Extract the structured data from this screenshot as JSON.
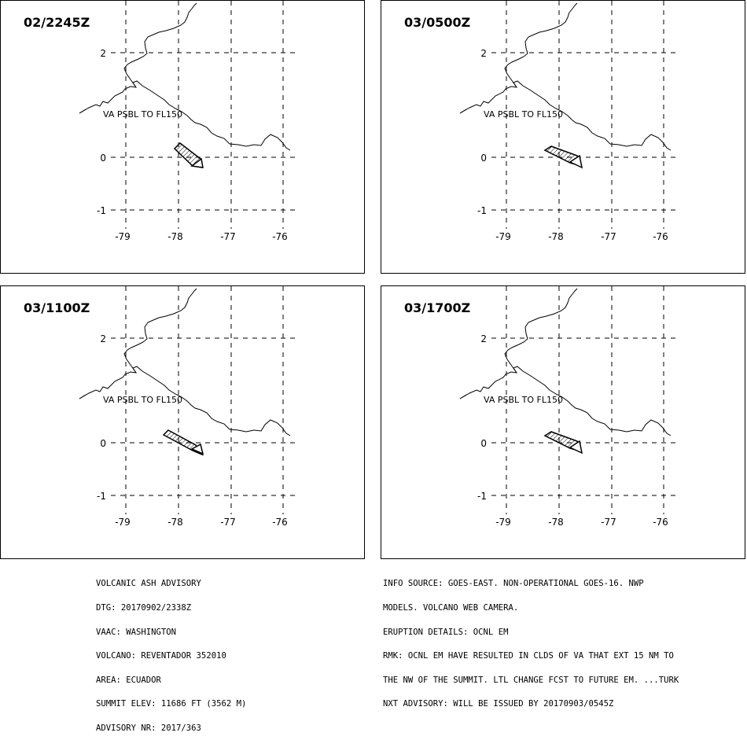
{
  "panels": [
    {
      "time": "02/2245Z",
      "label": "VA PSBL TO FL150",
      "cloud": "p1"
    },
    {
      "time": "03/0500Z",
      "label": "VA PSBL TO FL150",
      "cloud": "p2"
    },
    {
      "time": "03/1100Z",
      "label": "VA PSBL TO FL150",
      "cloud": "p3"
    },
    {
      "time": "03/1700Z",
      "label": "VA PSBL TO FL150",
      "cloud": "p2"
    }
  ],
  "axes": {
    "lon_ticks": [
      "-79",
      "-78",
      "-77",
      "-76"
    ],
    "lat_ticks": [
      "2",
      "0",
      "-1"
    ]
  },
  "advisory_left": [
    "VOLCANIC ASH ADVISORY",
    "DTG: 20170902/2338Z",
    "VAAC: WASHINGTON",
    "VOLCANO: REVENTADOR 352010",
    "AREA: ECUADOR",
    "SUMMIT ELEV: 11686 FT (3562 M)",
    "ADVISORY NR: 2017/363"
  ],
  "advisory_right": [
    "INFO SOURCE: GOES-EAST. NON-OPERATIONAL GOES-16. NWP",
    "MODELS. VOLCANO WEB CAMERA.",
    "ERUPTION DETAILS: OCNL EM",
    "RMK: OCNL EM HAVE RESULTED IN CLDS OF VA THAT EXT 15 NM TO",
    "THE NW OF THE SUMMIT. LTL CHANGE FCST TO FUTURE EM. ...TURK",
    "NXT ADVISORY: WILL BE ISSUED BY 20170903/0545Z"
  ]
}
